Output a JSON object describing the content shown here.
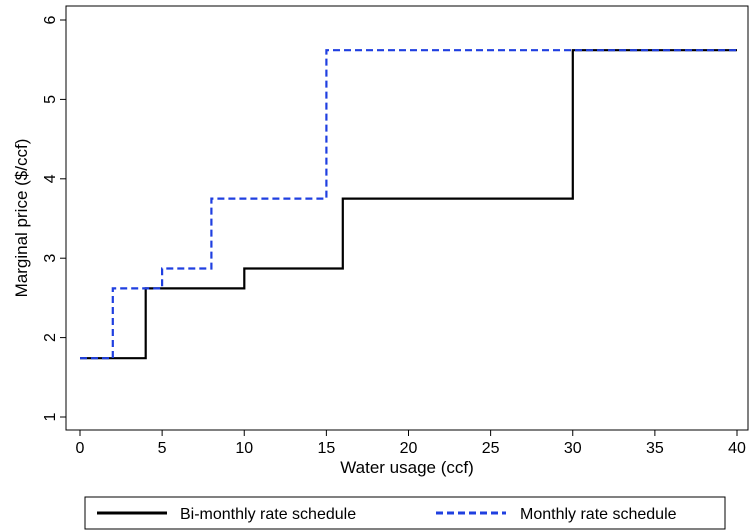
{
  "chart_data": {
    "type": "line",
    "step": true,
    "title": "",
    "xlabel": "Water usage (ccf)",
    "ylabel": "Marginal price ($/ccf)",
    "xlim": [
      0,
      40
    ],
    "ylim": [
      0.8,
      6.2
    ],
    "xticks": [
      "0",
      "5",
      "10",
      "15",
      "20",
      "25",
      "30",
      "35",
      "40"
    ],
    "yticks": [
      "1",
      "2",
      "3",
      "4",
      "5",
      "6"
    ],
    "grid": false,
    "legend_position": "bottom",
    "series": [
      {
        "name": "Bi-monthly rate schedule",
        "color": "#000000",
        "dash": "solid",
        "x": [
          0,
          4,
          4,
          10,
          10,
          16,
          16,
          30,
          30,
          40
        ],
        "y": [
          1.74,
          1.74,
          2.62,
          2.62,
          2.87,
          2.87,
          3.75,
          3.75,
          5.62,
          5.62
        ]
      },
      {
        "name": "Monthly rate schedule",
        "color": "#1f3fe0",
        "dash": "dashed",
        "x": [
          0,
          2,
          2,
          5,
          5,
          8,
          8,
          15,
          15,
          40
        ],
        "y": [
          1.74,
          1.74,
          2.62,
          2.62,
          2.87,
          2.87,
          3.75,
          3.75,
          5.62,
          5.62
        ]
      }
    ]
  }
}
